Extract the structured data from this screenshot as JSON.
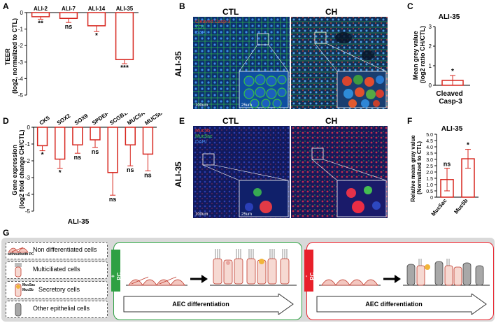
{
  "panel_letters": [
    "A",
    "B",
    "C",
    "D",
    "E",
    "F",
    "G"
  ],
  "colors": {
    "bar_outline": "#d7261e",
    "plus_pc_green": "#2ea043",
    "minus_pc_red": "#e8202a",
    "row_label_bg": "#d9d9d9",
    "cell_pink": "#f3c7c0",
    "cell_outline": "#c0392b"
  },
  "panelA": {
    "chart_data": {
      "type": "bar",
      "categories": [
        "ALI-2",
        "ALI-7",
        "ALI-14",
        "ALI-35"
      ],
      "values": [
        -0.25,
        -0.35,
        -0.8,
        -2.85
      ],
      "errors": [
        0.15,
        0.25,
        0.35,
        0.25
      ],
      "significance": [
        "**",
        "ns",
        "*",
        "***"
      ],
      "ylabel_line1": "TEER",
      "ylabel_line2": "(log2, normalized to CTL)",
      "ylim": [
        -5,
        0
      ],
      "yticks": [
        "0",
        "-1",
        "-2",
        "-3",
        "-4",
        "-5"
      ]
    }
  },
  "panelB": {
    "row_label": "ALI-35",
    "col_labels": [
      "CTL",
      "CH"
    ],
    "legend_top": "Cleaved Casp-3",
    "legend_mid": "ZO1",
    "legend_bot": "DAPI",
    "scale_main": "100um",
    "scale_inset": "25um"
  },
  "panelC": {
    "chart_data": {
      "type": "bar",
      "title": "ALI-35",
      "categories": [
        "Cleaved Casp-3"
      ],
      "category_lines": [
        "Cleaved",
        "Casp-3"
      ],
      "values": [
        0.25
      ],
      "errors": [
        0.25
      ],
      "significance": [
        "*"
      ],
      "ylabel_line1": "Mean grey value",
      "ylabel_line2": "(log2 ratio CH/CTL)",
      "ylim": [
        0,
        3
      ],
      "yticks": [
        "0",
        "1",
        "2",
        "3"
      ]
    }
  },
  "panelD": {
    "chart_data": {
      "type": "bar",
      "categories": [
        "CK5",
        "SOX2",
        "SOX9",
        "SPDEF",
        "SCGB1A1",
        "MUC5AC",
        "MUC5B"
      ],
      "values": [
        -1.1,
        -1.9,
        -1.05,
        -0.75,
        -2.7,
        -1.05,
        -1.6
      ],
      "errors": [
        0.3,
        0.55,
        0.5,
        0.45,
        1.35,
        1.25,
        1.0
      ],
      "significance": [
        "*",
        "*",
        "ns",
        "ns",
        "ns",
        "ns",
        "ns"
      ],
      "ylabel_line1": "Gene expression",
      "ylabel_line2": "(log2 fold change CH/CTL)",
      "xlabel": "ALI-35",
      "ylim": [
        -5,
        0
      ],
      "yticks": [
        "0",
        "-1",
        "-2",
        "-3",
        "-4",
        "-5"
      ]
    }
  },
  "panelE": {
    "row_label": "ALI-35",
    "col_labels": [
      "CTL",
      "CH"
    ],
    "legend_top": "Muc5b",
    "legend_mid": "Muc5ac",
    "legend_bot": "DAPI",
    "scale_main": "100um",
    "scale_inset": "25um"
  },
  "panelF": {
    "chart_data": {
      "type": "bar",
      "title": "ALI-35",
      "categories": [
        "Muc5ac",
        "Muc5b"
      ],
      "values": [
        1.4,
        3.05
      ],
      "errors": [
        0.9,
        0.75
      ],
      "significance": [
        "ns",
        "*"
      ],
      "ylabel_line1": "Relative mean gray value",
      "ylabel_line2": "(Normalized to CTL)",
      "ylim": [
        0,
        5
      ],
      "yticks": [
        "0",
        "0.5",
        "1.0",
        "1.5",
        "2.0",
        "2.5",
        "3.0",
        "3.5",
        "4.0",
        "4.5",
        "5.0"
      ]
    }
  },
  "panelG": {
    "legend": {
      "row1_sub": "without/with PC",
      "row1_label": "Non differentiated cells",
      "row2_label": "Multiciliated cells",
      "row3_muc5ac": "Muc5ac",
      "row3_muc5b": "Muc5b",
      "row3_label": "Secretory cells",
      "row4_label": "Other epithelial cells"
    },
    "plus_label": "+ PC",
    "minus_label": "- PC",
    "arrow_label": "AEC differentiation"
  }
}
